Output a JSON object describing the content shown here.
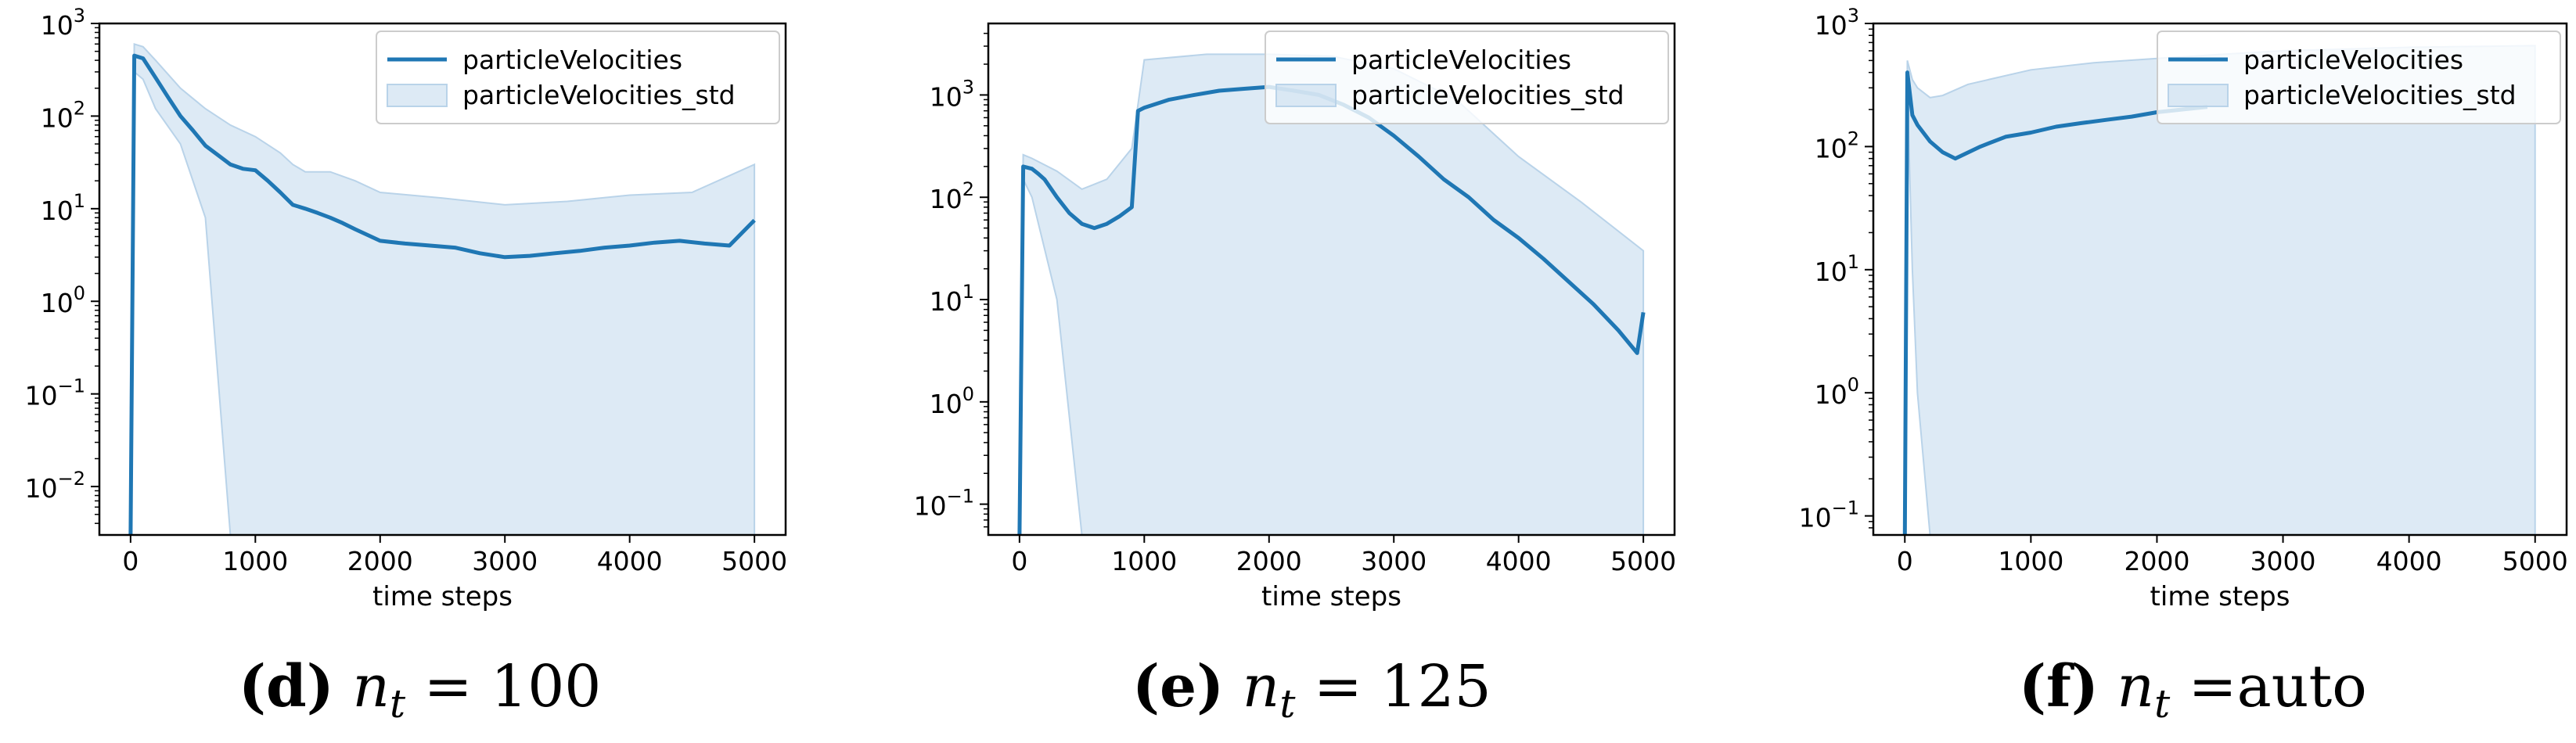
{
  "figure": {
    "captions": [
      {
        "label": "(d)",
        "var": "n",
        "sub": "t",
        "rest": " = 100"
      },
      {
        "label": "(e)",
        "var": "n",
        "sub": "t",
        "rest": " = 125"
      },
      {
        "label": "(f)",
        "var": "n",
        "sub": "t",
        "rest": " =auto"
      }
    ]
  },
  "chart_data": [
    {
      "type": "line",
      "title": "",
      "xlabel": "time steps",
      "ylabel": "",
      "yscale": "log",
      "xlim": [
        -250,
        5250
      ],
      "ylim": [
        0.003,
        1000
      ],
      "xticks": [
        0,
        1000,
        2000,
        3000,
        4000,
        5000
      ],
      "yticks": [
        {
          "value": 1000,
          "base": "10",
          "exp": "3"
        },
        {
          "value": 100,
          "base": "10",
          "exp": "2"
        },
        {
          "value": 10,
          "base": "10",
          "exp": "1"
        },
        {
          "value": 1,
          "base": "10",
          "exp": "0"
        },
        {
          "value": 0.1,
          "base": "10",
          "exp": "−1"
        },
        {
          "value": 0.01,
          "base": "10",
          "exp": "−2"
        }
      ],
      "legend": {
        "position": "top-right",
        "entries": [
          "particleVelocities",
          "particleVelocities_std"
        ]
      },
      "series": [
        {
          "name": "particleVelocities",
          "color": "#1f77b4",
          "x": [
            0,
            30,
            100,
            200,
            300,
            400,
            500,
            600,
            700,
            800,
            900,
            1000,
            1100,
            1200,
            1300,
            1400,
            1500,
            1600,
            1700,
            1800,
            2000,
            2200,
            2400,
            2600,
            2800,
            3000,
            3200,
            3400,
            3600,
            3800,
            4000,
            4200,
            4400,
            4600,
            4800,
            5000
          ],
          "y": [
            0.003,
            450,
            420,
            260,
            160,
            100,
            70,
            48,
            38,
            30,
            27,
            26,
            20,
            15,
            11,
            10,
            9,
            8,
            7,
            6,
            4.5,
            4.2,
            4.0,
            3.8,
            3.3,
            3.0,
            3.1,
            3.3,
            3.5,
            3.8,
            4.0,
            4.3,
            4.5,
            4.2,
            4.0,
            7.5
          ]
        },
        {
          "name": "particleVelocities_std",
          "type": "area",
          "color": "#c6dcee",
          "x": [
            0,
            30,
            100,
            200,
            400,
            600,
            800,
            1000,
            1200,
            1300,
            1400,
            1600,
            1800,
            2000,
            2500,
            3000,
            3500,
            4000,
            4500,
            5000
          ],
          "y_upper": [
            0.003,
            600,
            560,
            400,
            200,
            120,
            80,
            60,
            40,
            30,
            25,
            25,
            20,
            15,
            13,
            11,
            12,
            14,
            15,
            30
          ],
          "y_lower": [
            0.003,
            300,
            250,
            120,
            50,
            8,
            0.003,
            0.003,
            0.003,
            0.003,
            0.003,
            0.003,
            0.003,
            0.003,
            0.003,
            0.003,
            0.003,
            0.003,
            0.003,
            0.003
          ]
        }
      ]
    },
    {
      "type": "line",
      "title": "",
      "xlabel": "time steps",
      "ylabel": "",
      "yscale": "log",
      "xlim": [
        -250,
        5250
      ],
      "ylim": [
        0.05,
        5000
      ],
      "xticks": [
        0,
        1000,
        2000,
        3000,
        4000,
        5000
      ],
      "yticks": [
        {
          "value": 1000,
          "base": "10",
          "exp": "3"
        },
        {
          "value": 100,
          "base": "10",
          "exp": "2"
        },
        {
          "value": 10,
          "base": "10",
          "exp": "1"
        },
        {
          "value": 1,
          "base": "10",
          "exp": "0"
        },
        {
          "value": 0.1,
          "base": "10",
          "exp": "−1"
        }
      ],
      "legend": {
        "position": "top-right",
        "entries": [
          "particleVelocities",
          "particleVelocities_std"
        ]
      },
      "series": [
        {
          "name": "particleVelocities",
          "color": "#1f77b4",
          "x": [
            0,
            30,
            100,
            150,
            200,
            300,
            400,
            500,
            600,
            700,
            800,
            900,
            950,
            1000,
            1200,
            1400,
            1600,
            1800,
            2000,
            2200,
            2400,
            2600,
            2800,
            3000,
            3200,
            3400,
            3600,
            3800,
            4000,
            4200,
            4400,
            4600,
            4800,
            4950,
            5000
          ],
          "y": [
            0.05,
            200,
            190,
            170,
            150,
            100,
            70,
            55,
            50,
            55,
            65,
            80,
            700,
            750,
            900,
            1000,
            1100,
            1150,
            1200,
            1100,
            1000,
            800,
            600,
            400,
            250,
            150,
            100,
            60,
            40,
            25,
            15,
            9,
            5,
            3,
            7.5
          ]
        },
        {
          "name": "particleVelocities_std",
          "type": "area",
          "color": "#c6dcee",
          "x": [
            0,
            30,
            100,
            300,
            500,
            700,
            900,
            1000,
            1500,
            2000,
            2500,
            3000,
            3500,
            4000,
            4500,
            5000
          ],
          "y_upper": [
            0.05,
            260,
            240,
            180,
            120,
            150,
            300,
            2200,
            2500,
            2500,
            2400,
            1800,
            900,
            250,
            90,
            30
          ],
          "y_lower": [
            0.05,
            150,
            100,
            10,
            0.05,
            0.05,
            0.05,
            0.05,
            0.05,
            0.05,
            0.05,
            0.05,
            0.05,
            0.05,
            0.05,
            0.05
          ]
        }
      ]
    },
    {
      "type": "line",
      "title": "",
      "xlabel": "time steps",
      "ylabel": "",
      "yscale": "log",
      "xlim": [
        -250,
        5250
      ],
      "ylim": [
        0.07,
        1000
      ],
      "xticks": [
        0,
        1000,
        2000,
        3000,
        4000,
        5000
      ],
      "yticks": [
        {
          "value": 1000,
          "base": "10",
          "exp": "3"
        },
        {
          "value": 100,
          "base": "10",
          "exp": "2"
        },
        {
          "value": 10,
          "base": "10",
          "exp": "1"
        },
        {
          "value": 1,
          "base": "10",
          "exp": "0"
        },
        {
          "value": 0.1,
          "base": "10",
          "exp": "−1"
        }
      ],
      "legend": {
        "position": "top-right",
        "entries": [
          "particleVelocities",
          "particleVelocities_std"
        ]
      },
      "series": [
        {
          "name": "particleVelocities",
          "color": "#1f77b4",
          "x": [
            0,
            20,
            60,
            100,
            200,
            300,
            400,
            600,
            800,
            1000,
            1200,
            1400,
            1600,
            1800,
            2000,
            2200,
            2400
          ],
          "y": [
            0.07,
            400,
            180,
            150,
            110,
            90,
            80,
            100,
            120,
            130,
            145,
            155,
            165,
            175,
            190,
            200,
            210
          ]
        },
        {
          "name": "particleVelocities_std",
          "type": "area",
          "color": "#c6dcee",
          "x": [
            0,
            20,
            60,
            100,
            200,
            300,
            500,
            1000,
            1500,
            2000,
            2500,
            3000,
            3500,
            4000,
            4500,
            5000
          ],
          "y_upper": [
            0.07,
            500,
            350,
            300,
            250,
            260,
            320,
            420,
            480,
            520,
            560,
            600,
            620,
            640,
            650,
            660
          ],
          "y_lower": [
            0.07,
            300,
            10,
            1,
            0.07,
            0.07,
            0.07,
            0.07,
            0.07,
            0.07,
            0.07,
            0.07,
            0.07,
            0.07,
            0.07,
            0.07
          ]
        }
      ]
    }
  ]
}
